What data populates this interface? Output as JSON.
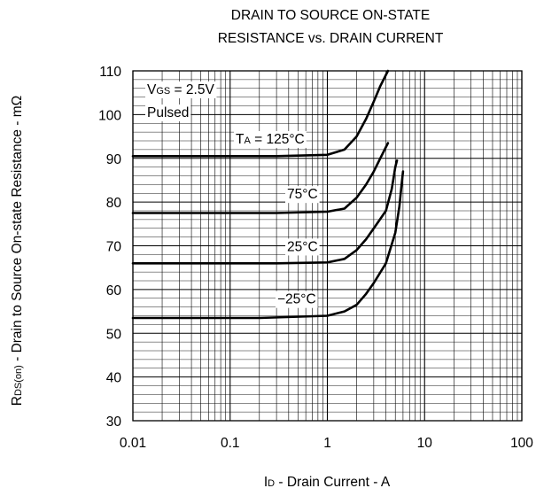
{
  "chart_data": {
    "type": "line",
    "title_lines": [
      "DRAIN TO SOURCE ON-STATE",
      "RESISTANCE vs. DRAIN CURRENT"
    ],
    "xlabel": {
      "main": "I",
      "sub": "D",
      "rest": " - Drain Current - A"
    },
    "ylabel": {
      "main": "R",
      "sub": "DS(on)",
      "rest": " - Drain to Source On-state Resistance - mΩ"
    },
    "x_scale": "log",
    "xlim": [
      0.01,
      100
    ],
    "ylim": [
      30,
      110
    ],
    "x_ticks": [
      0.01,
      0.1,
      1,
      10,
      100
    ],
    "x_tick_labels": [
      "0.01",
      "0.1",
      "1",
      "10",
      "100"
    ],
    "y_ticks": [
      30,
      40,
      50,
      60,
      70,
      80,
      90,
      100,
      110
    ],
    "y_tick_labels": [
      "30",
      "40",
      "50",
      "60",
      "70",
      "80",
      "90",
      "100",
      "110"
    ],
    "grid": true,
    "conditions": {
      "vgs": {
        "main": "V",
        "sub": "GS",
        "rest": " = 2.5V"
      },
      "pulsed": "Pulsed"
    },
    "series": [
      {
        "name": "TA = 125°C",
        "label": {
          "main": "T",
          "sub": "A",
          "rest": " = 125°C"
        },
        "points": [
          [
            0.01,
            90.5
          ],
          [
            0.3,
            90.5
          ],
          [
            1,
            90.8
          ],
          [
            1.5,
            92
          ],
          [
            2,
            95
          ],
          [
            2.5,
            99
          ],
          [
            3,
            103
          ],
          [
            3.5,
            106.5
          ],
          [
            4.2,
            110
          ]
        ]
      },
      {
        "name": "75°C",
        "label": {
          "main": "",
          "sub": "",
          "rest": "75°C"
        },
        "points": [
          [
            0.01,
            77.5
          ],
          [
            0.3,
            77.5
          ],
          [
            1,
            77.8
          ],
          [
            1.5,
            78.5
          ],
          [
            2,
            81
          ],
          [
            2.5,
            84
          ],
          [
            3,
            87
          ],
          [
            3.5,
            90
          ],
          [
            4.2,
            93.5
          ]
        ]
      },
      {
        "name": "25°C",
        "label": {
          "main": "",
          "sub": "",
          "rest": "25°C"
        },
        "points": [
          [
            0.01,
            66
          ],
          [
            0.3,
            66
          ],
          [
            1,
            66.2
          ],
          [
            1.5,
            67
          ],
          [
            2,
            69
          ],
          [
            2.5,
            71.5
          ],
          [
            3,
            74
          ],
          [
            4,
            78
          ],
          [
            4.6,
            83
          ],
          [
            5,
            88
          ],
          [
            5.2,
            89.5
          ]
        ]
      },
      {
        "name": "−25°C",
        "label": {
          "main": "",
          "sub": "",
          "rest": "−25°C"
        },
        "points": [
          [
            0.01,
            53.5
          ],
          [
            0.2,
            53.5
          ],
          [
            1,
            54
          ],
          [
            1.5,
            55
          ],
          [
            2,
            56.5
          ],
          [
            2.5,
            59
          ],
          [
            3,
            61.5
          ],
          [
            4,
            66
          ],
          [
            5,
            73
          ],
          [
            5.5,
            79
          ],
          [
            5.8,
            84
          ],
          [
            6,
            87
          ]
        ]
      }
    ]
  }
}
